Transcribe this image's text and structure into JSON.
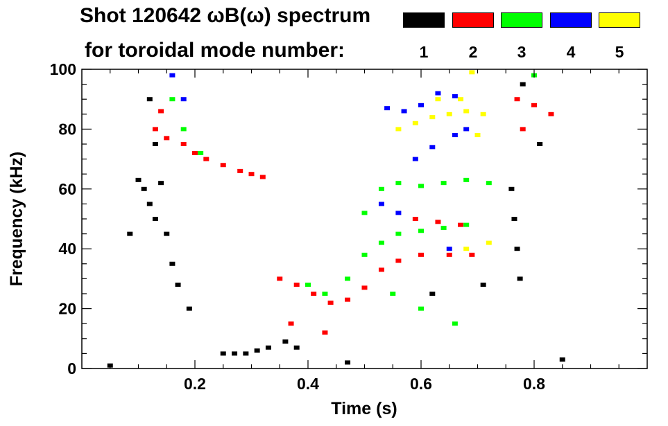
{
  "title_line1": "Shot 120642 ωB(ω) spectrum",
  "title_line2": "for toroidal mode number:",
  "legend": [
    {
      "label": "1",
      "color": "#000000"
    },
    {
      "label": "2",
      "color": "#ff0000"
    },
    {
      "label": "3",
      "color": "#00ff00"
    },
    {
      "label": "4",
      "color": "#0000ff"
    },
    {
      "label": "5",
      "color": "#ffff00"
    }
  ],
  "chart_data": {
    "type": "scatter",
    "title": "Shot 120642 ωB(ω) spectrum",
    "xlabel": "Time (s)",
    "ylabel": "Frequency (kHz)",
    "xlim": [
      0.0,
      1.0
    ],
    "ylim": [
      0,
      100
    ],
    "x_ticks": [
      "0.2",
      "0.4",
      "0.6",
      "0.8"
    ],
    "y_ticks": [
      "0",
      "20",
      "40",
      "60",
      "80",
      "100"
    ],
    "grid": false,
    "legend_position": "top-right",
    "series": [
      {
        "name": "1",
        "color": "#000000",
        "points": [
          [
            0.05,
            1
          ],
          [
            0.085,
            45
          ],
          [
            0.1,
            63
          ],
          [
            0.11,
            60
          ],
          [
            0.12,
            55
          ],
          [
            0.13,
            50
          ],
          [
            0.14,
            62
          ],
          [
            0.15,
            45
          ],
          [
            0.16,
            35
          ],
          [
            0.17,
            28
          ],
          [
            0.12,
            90
          ],
          [
            0.13,
            75
          ],
          [
            0.19,
            20
          ],
          [
            0.25,
            5
          ],
          [
            0.27,
            5
          ],
          [
            0.29,
            5
          ],
          [
            0.31,
            6
          ],
          [
            0.33,
            7
          ],
          [
            0.36,
            9
          ],
          [
            0.38,
            7
          ],
          [
            0.47,
            2
          ],
          [
            0.62,
            25
          ],
          [
            0.71,
            28
          ],
          [
            0.76,
            60
          ],
          [
            0.765,
            50
          ],
          [
            0.77,
            40
          ],
          [
            0.775,
            30
          ],
          [
            0.78,
            95
          ],
          [
            0.81,
            75
          ],
          [
            0.85,
            3
          ]
        ]
      },
      {
        "name": "2",
        "color": "#ff0000",
        "points": [
          [
            0.13,
            80
          ],
          [
            0.14,
            86
          ],
          [
            0.15,
            77
          ],
          [
            0.18,
            75
          ],
          [
            0.2,
            72
          ],
          [
            0.22,
            70
          ],
          [
            0.25,
            68
          ],
          [
            0.28,
            66
          ],
          [
            0.3,
            65
          ],
          [
            0.32,
            64
          ],
          [
            0.35,
            30
          ],
          [
            0.38,
            28
          ],
          [
            0.41,
            25
          ],
          [
            0.44,
            22
          ],
          [
            0.47,
            23
          ],
          [
            0.5,
            27
          ],
          [
            0.53,
            33
          ],
          [
            0.56,
            36
          ],
          [
            0.6,
            38
          ],
          [
            0.65,
            38
          ],
          [
            0.69,
            38
          ],
          [
            0.59,
            50
          ],
          [
            0.63,
            49
          ],
          [
            0.67,
            48
          ],
          [
            0.77,
            90
          ],
          [
            0.78,
            80
          ],
          [
            0.8,
            88
          ],
          [
            0.83,
            85
          ],
          [
            0.37,
            15
          ],
          [
            0.43,
            12
          ]
        ]
      },
      {
        "name": "3",
        "color": "#00ff00",
        "points": [
          [
            0.16,
            90
          ],
          [
            0.18,
            80
          ],
          [
            0.21,
            72
          ],
          [
            0.4,
            28
          ],
          [
            0.43,
            25
          ],
          [
            0.47,
            30
          ],
          [
            0.5,
            38
          ],
          [
            0.53,
            42
          ],
          [
            0.56,
            45
          ],
          [
            0.6,
            46
          ],
          [
            0.64,
            47
          ],
          [
            0.68,
            48
          ],
          [
            0.5,
            52
          ],
          [
            0.53,
            60
          ],
          [
            0.56,
            62
          ],
          [
            0.6,
            61
          ],
          [
            0.64,
            62
          ],
          [
            0.68,
            63
          ],
          [
            0.72,
            62
          ],
          [
            0.55,
            25
          ],
          [
            0.6,
            20
          ],
          [
            0.66,
            15
          ],
          [
            0.8,
            98
          ]
        ]
      },
      {
        "name": "4",
        "color": "#0000ff",
        "points": [
          [
            0.16,
            98
          ],
          [
            0.18,
            90
          ],
          [
            0.54,
            87
          ],
          [
            0.57,
            86
          ],
          [
            0.6,
            88
          ],
          [
            0.63,
            92
          ],
          [
            0.66,
            91
          ],
          [
            0.59,
            70
          ],
          [
            0.62,
            74
          ],
          [
            0.66,
            78
          ],
          [
            0.68,
            80
          ],
          [
            0.53,
            55
          ],
          [
            0.56,
            52
          ],
          [
            0.65,
            40
          ]
        ]
      },
      {
        "name": "5",
        "color": "#ffff00",
        "points": [
          [
            0.56,
            80
          ],
          [
            0.59,
            82
          ],
          [
            0.62,
            84
          ],
          [
            0.65,
            85
          ],
          [
            0.68,
            86
          ],
          [
            0.71,
            85
          ],
          [
            0.63,
            90
          ],
          [
            0.67,
            90
          ],
          [
            0.7,
            78
          ],
          [
            0.68,
            40
          ],
          [
            0.72,
            42
          ],
          [
            0.69,
            99
          ]
        ]
      }
    ]
  }
}
